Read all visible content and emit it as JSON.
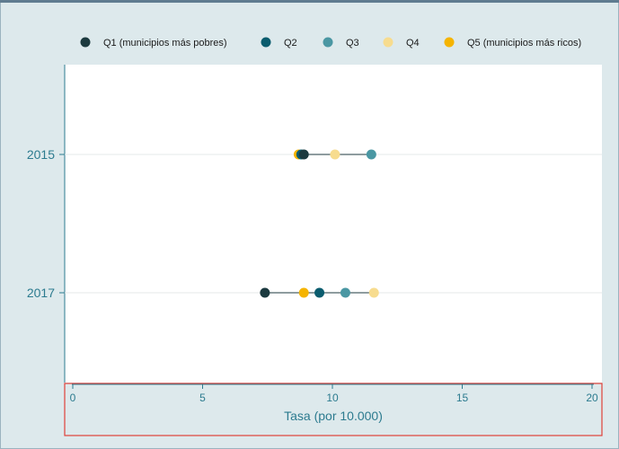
{
  "chart_data": {
    "type": "scatter",
    "title": "",
    "xlabel": "Tasa (por 10.000)",
    "ylabel": "",
    "xlim": [
      0,
      20
    ],
    "xticks": [
      "0",
      "5",
      "10",
      "15",
      "20"
    ],
    "categories": [
      "2015",
      "2017"
    ],
    "legend_position": "top",
    "grid": true,
    "series": [
      {
        "name": "Q1 (municipios más pobres)",
        "color": "#1c3a3f",
        "values": [
          8.9,
          7.4
        ]
      },
      {
        "name": "Q2",
        "color": "#0a5c6e",
        "values": [
          8.8,
          9.5
        ]
      },
      {
        "name": "Q3",
        "color": "#4a97a3",
        "values": [
          11.5,
          10.5
        ]
      },
      {
        "name": "Q4",
        "color": "#f7dc8f",
        "values": [
          10.1,
          11.6
        ]
      },
      {
        "name": "Q5 (municipios más ricos)",
        "color": "#f5b400",
        "values": [
          8.7,
          8.9
        ]
      }
    ],
    "range_line_color": "#1c3a3f"
  }
}
